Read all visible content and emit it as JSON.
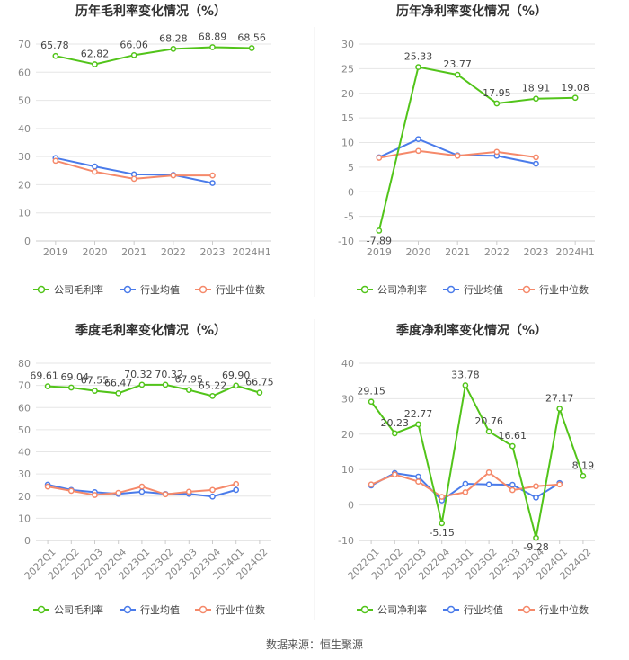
{
  "chart_data": [
    {
      "type": "line",
      "title": "历年毛利率变化情况（%）",
      "categories": [
        "2019",
        "2020",
        "2021",
        "2022",
        "2023",
        "2024H1"
      ],
      "ylim": [
        0,
        70
      ],
      "yticks": [
        0,
        10,
        20,
        30,
        40,
        50,
        60,
        70
      ],
      "series": [
        {
          "name": "公司毛利率",
          "values": [
            65.78,
            62.82,
            66.06,
            68.28,
            68.89,
            68.56
          ],
          "labels": true
        },
        {
          "name": "行业均值",
          "values": [
            29.5,
            26.5,
            23.7,
            23.5,
            20.6,
            null
          ]
        },
        {
          "name": "行业中位数",
          "values": [
            28.5,
            24.6,
            22.1,
            23.3,
            23.3,
            null
          ]
        }
      ]
    },
    {
      "type": "line",
      "title": "历年净利率变化情况（%）",
      "categories": [
        "2019",
        "2020",
        "2021",
        "2022",
        "2023",
        "2024H1"
      ],
      "ylim": [
        -10,
        30
      ],
      "yticks": [
        -10,
        -5,
        0,
        5,
        10,
        15,
        20,
        25,
        30
      ],
      "series": [
        {
          "name": "公司净利率",
          "values": [
            -7.89,
            25.33,
            23.77,
            17.95,
            18.91,
            19.08
          ],
          "labels": true
        },
        {
          "name": "行业均值",
          "values": [
            7.0,
            10.7,
            7.4,
            7.3,
            5.7,
            null
          ]
        },
        {
          "name": "行业中位数",
          "values": [
            6.9,
            8.3,
            7.3,
            8.1,
            7.0,
            null
          ]
        }
      ]
    },
    {
      "type": "line",
      "title": "季度毛利率变化情况（%）",
      "categories": [
        "2022Q1",
        "2022Q2",
        "2022Q3",
        "2022Q4",
        "2023Q1",
        "2023Q2",
        "2023Q3",
        "2023Q4",
        "2024Q1",
        "2024Q2"
      ],
      "ylim": [
        0,
        80
      ],
      "yticks": [
        0,
        10,
        20,
        30,
        40,
        50,
        60,
        70,
        80
      ],
      "series": [
        {
          "name": "公司毛利率",
          "values": [
            69.61,
            69.04,
            67.55,
            66.47,
            70.32,
            70.32,
            67.95,
            65.22,
            69.9,
            66.75
          ],
          "labels": true
        },
        {
          "name": "行业均值",
          "values": [
            25.2,
            22.8,
            21.8,
            21.0,
            22.0,
            21.0,
            21.0,
            19.8,
            22.8,
            null
          ]
        },
        {
          "name": "行业中位数",
          "values": [
            24.3,
            22.4,
            20.5,
            21.5,
            24.3,
            20.8,
            22.0,
            22.8,
            25.5,
            null
          ]
        }
      ]
    },
    {
      "type": "line",
      "title": "季度净利率变化情况（%）",
      "categories": [
        "2022Q1",
        "2022Q2",
        "2022Q3",
        "2022Q4",
        "2023Q1",
        "2023Q2",
        "2023Q3",
        "2023Q4",
        "2024Q1",
        "2024Q2"
      ],
      "ylim": [
        -10,
        40
      ],
      "yticks": [
        -10,
        0,
        10,
        20,
        30,
        40
      ],
      "series": [
        {
          "name": "公司净利率",
          "values": [
            29.15,
            20.23,
            22.77,
            -5.15,
            33.78,
            20.76,
            16.61,
            -9.28,
            27.17,
            8.19
          ],
          "labels": true
        },
        {
          "name": "行业均值",
          "values": [
            5.5,
            9.0,
            8.0,
            1.3,
            6.0,
            5.8,
            5.7,
            2.1,
            6.2,
            null
          ]
        },
        {
          "name": "行业中位数",
          "values": [
            5.8,
            8.6,
            6.6,
            2.3,
            3.6,
            9.2,
            4.2,
            5.3,
            5.8,
            null
          ]
        }
      ]
    }
  ],
  "colors": {
    "公司": "#52c41a",
    "行业均值": "#4a7bea",
    "行业中位数": "#f5896a",
    "grid": "#e6e6e6",
    "tick_text": "#888888",
    "label_text": "#444444"
  },
  "footer": "数据来源：恒生聚源"
}
